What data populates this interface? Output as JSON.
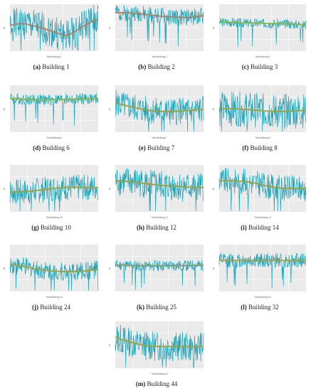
{
  "colors": {
    "signal": "#1aa3b8",
    "trend": "#7fb843",
    "trend_alt": "#c9853c",
    "spike": "#e0409a",
    "plot_bg": "#eaeaea",
    "grid": "#ffffff"
  },
  "chart_data": [
    {
      "type": "line",
      "label": "(a)",
      "caption": "Building 1",
      "x_axis_title": "Time/Building 1",
      "y_axis_title": "E",
      "trend_colors": [
        "#7fb843",
        "#e0409a"
      ],
      "level": 0.55,
      "amp": 0.35,
      "trend": [
        0.55,
        0.58,
        0.58,
        0.54,
        0.5,
        0.44,
        0.38,
        0.32,
        0.4,
        0.52,
        0.62,
        0.68
      ],
      "seed": 1,
      "spikes": 8
    },
    {
      "type": "line",
      "label": "(b)",
      "caption": "Building 2",
      "x_axis_title": "Time/Building 2",
      "y_axis_title": "E",
      "trend_colors": [
        "#7fb843",
        "#e0409a"
      ],
      "level": 0.82,
      "amp": 0.18,
      "trend": [
        0.82,
        0.82,
        0.81,
        0.8,
        0.78,
        0.76,
        0.74,
        0.72,
        0.72,
        0.72,
        0.74,
        0.76
      ],
      "seed": 2,
      "spikes": 10
    },
    {
      "type": "line",
      "label": "(c)",
      "caption": "Building 3",
      "x_axis_title": "Time/Building 3",
      "y_axis_title": "E",
      "trend_colors": [
        "#7fb843"
      ],
      "level": 0.62,
      "amp": 0.1,
      "trend": [
        0.62,
        0.62,
        0.61,
        0.6,
        0.6,
        0.6,
        0.59,
        0.59,
        0.58,
        0.58,
        0.57,
        0.57
      ],
      "seed": 3,
      "spikes": 6
    },
    {
      "type": "line",
      "label": "(d)",
      "caption": "Building 6",
      "x_axis_title": "Time/Building 6",
      "y_axis_title": "E",
      "trend_colors": [
        "#7fb843"
      ],
      "level": 0.7,
      "amp": 0.12,
      "trend": [
        0.72,
        0.71,
        0.7,
        0.7,
        0.69,
        0.69,
        0.7,
        0.7,
        0.7,
        0.71,
        0.71,
        0.72
      ],
      "seed": 4,
      "spikes": 8
    },
    {
      "type": "line",
      "label": "(e)",
      "caption": "Building 7",
      "x_axis_title": "Time/Building 7",
      "y_axis_title": "E",
      "trend_colors": [
        "#7fb843",
        "#c9853c"
      ],
      "level": 0.5,
      "amp": 0.3,
      "trend": [
        0.62,
        0.58,
        0.54,
        0.5,
        0.47,
        0.45,
        0.44,
        0.44,
        0.45,
        0.46,
        0.48,
        0.49
      ],
      "seed": 5,
      "spikes": 5
    },
    {
      "type": "line",
      "label": "(f)",
      "caption": "Building 8",
      "x_axis_title": "Time/Building 8",
      "y_axis_title": "E",
      "trend_colors": [
        "#7fb843",
        "#c9853c"
      ],
      "level": 0.48,
      "amp": 0.38,
      "trend": [
        0.5,
        0.5,
        0.5,
        0.49,
        0.48,
        0.47,
        0.45,
        0.44,
        0.44,
        0.45,
        0.46,
        0.47
      ],
      "seed": 6,
      "spikes": 4
    },
    {
      "type": "line",
      "label": "(g)",
      "caption": "Building 10",
      "x_axis_title": "Time/Building 10",
      "y_axis_title": "E",
      "trend_colors": [
        "#7fb843",
        "#c9853c"
      ],
      "level": 0.5,
      "amp": 0.28,
      "trend": [
        0.42,
        0.42,
        0.43,
        0.45,
        0.47,
        0.49,
        0.51,
        0.52,
        0.52,
        0.52,
        0.52,
        0.52
      ],
      "seed": 7,
      "spikes": 5
    },
    {
      "type": "line",
      "label": "(h)",
      "caption": "Building 12",
      "x_axis_title": "Time/Building 12",
      "y_axis_title": "E",
      "trend_colors": [
        "#7fb843",
        "#c9853c"
      ],
      "level": 0.52,
      "amp": 0.32,
      "trend": [
        0.66,
        0.65,
        0.64,
        0.62,
        0.6,
        0.58,
        0.56,
        0.55,
        0.54,
        0.53,
        0.52,
        0.52
      ],
      "seed": 8,
      "spikes": 5
    },
    {
      "type": "line",
      "label": "(i)",
      "caption": "Building 14",
      "x_axis_title": "Time/Building 14",
      "y_axis_title": "E",
      "trend_colors": [
        "#7fb843",
        "#c9853c"
      ],
      "level": 0.58,
      "amp": 0.28,
      "trend": [
        0.66,
        0.66,
        0.66,
        0.65,
        0.63,
        0.6,
        0.55,
        0.52,
        0.5,
        0.5,
        0.5,
        0.5
      ],
      "seed": 9,
      "spikes": 6
    },
    {
      "type": "line",
      "label": "(j)",
      "caption": "Building 24",
      "x_axis_title": "Time/Building 24",
      "y_axis_title": "E",
      "trend_colors": [
        "#7fb843",
        "#c9853c"
      ],
      "level": 0.5,
      "amp": 0.2,
      "trend": [
        0.58,
        0.55,
        0.52,
        0.49,
        0.46,
        0.44,
        0.43,
        0.42,
        0.42,
        0.43,
        0.45,
        0.47
      ],
      "seed": 10,
      "spikes": 8
    },
    {
      "type": "line",
      "label": "(k)",
      "caption": "Building 25",
      "x_axis_title": "",
      "y_axis_title": "E",
      "trend_colors": [
        "#7fb843",
        "#8877cc"
      ],
      "level": 0.55,
      "amp": 0.12,
      "trend": [
        0.56,
        0.56,
        0.55,
        0.55,
        0.55,
        0.55,
        0.55,
        0.55,
        0.55,
        0.55,
        0.56,
        0.56
      ],
      "seed": 11,
      "spikes": 7
    },
    {
      "type": "line",
      "label": "(l)",
      "caption": "Building 32",
      "x_axis_title": "Time/Building 32",
      "y_axis_title": "E",
      "trend_colors": [
        "#7fb843",
        "#c9853c"
      ],
      "level": 0.66,
      "amp": 0.16,
      "trend": [
        0.66,
        0.66,
        0.66,
        0.66,
        0.66,
        0.66,
        0.66,
        0.66,
        0.66,
        0.66,
        0.66,
        0.66
      ],
      "seed": 12,
      "spikes": 9
    },
    {
      "type": "line",
      "label": "(m)",
      "caption": "Building 44",
      "x_axis_title": "Time/Building 44",
      "y_axis_title": "E",
      "trend_colors": [
        "#7fb843",
        "#c9853c"
      ],
      "level": 0.48,
      "amp": 0.32,
      "trend": [
        0.66,
        0.6,
        0.55,
        0.51,
        0.48,
        0.47,
        0.46,
        0.46,
        0.46,
        0.46,
        0.46,
        0.47
      ],
      "seed": 13,
      "spikes": 5
    }
  ]
}
